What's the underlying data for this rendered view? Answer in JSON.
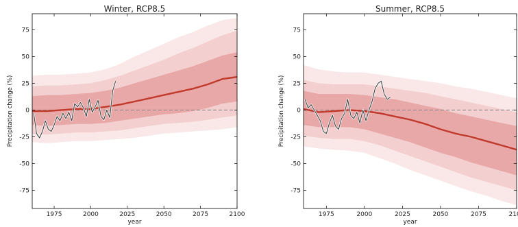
{
  "figure": {
    "background": "#ffffff"
  },
  "chart_data": [
    {
      "type": "area",
      "title": "Winter, RCP8.5",
      "xlabel": "year",
      "ylabel": "Precipitation change (%)",
      "xlim": [
        1960,
        2100
      ],
      "ylim": [
        -92,
        90
      ],
      "xticks": [
        1975,
        2000,
        2025,
        2050,
        2075,
        2100
      ],
      "yticks": [
        -75,
        -50,
        -25,
        0,
        25,
        50,
        75
      ],
      "zero_line": {
        "y": 0,
        "style": "dashed",
        "color": "#8a8a8a"
      },
      "colors": {
        "median": "#c0392b",
        "band_inner": "#e8a8a8",
        "band_middle": "#f4cfcf",
        "band_outer": "#fae8e8",
        "observed": "#404040"
      },
      "x": [
        1960,
        1970,
        1980,
        1990,
        2000,
        2010,
        2020,
        2030,
        2040,
        2050,
        2060,
        2070,
        2080,
        2090,
        2100
      ],
      "series": [
        {
          "role": "median",
          "values": [
            -1,
            -1,
            0,
            1,
            1,
            3,
            5,
            8,
            11,
            14,
            17,
            20,
            24,
            29,
            31
          ]
        },
        {
          "role": "band_inner_upper",
          "values": [
            13,
            14,
            14,
            15,
            16,
            18,
            21,
            25,
            29,
            33,
            37,
            41,
            46,
            51,
            54
          ]
        },
        {
          "role": "band_inner_lower",
          "values": [
            -14,
            -15,
            -14,
            -13,
            -13,
            -12,
            -10,
            -8,
            -6,
            -4,
            -3,
            -1,
            2,
            6,
            8
          ]
        },
        {
          "role": "band_middle_upper",
          "values": [
            22,
            23,
            23,
            24,
            25,
            28,
            32,
            37,
            42,
            47,
            53,
            58,
            64,
            70,
            74
          ]
        },
        {
          "role": "band_middle_lower",
          "values": [
            -22,
            -23,
            -22,
            -21,
            -21,
            -20,
            -19,
            -17,
            -15,
            -13,
            -12,
            -11,
            -9,
            -7,
            -5
          ]
        },
        {
          "role": "band_outer_upper",
          "values": [
            32,
            33,
            33,
            34,
            35,
            38,
            43,
            50,
            56,
            62,
            68,
            73,
            79,
            84,
            86
          ]
        },
        {
          "role": "band_outer_lower",
          "values": [
            -30,
            -31,
            -30,
            -29,
            -29,
            -28,
            -27,
            -26,
            -24,
            -22,
            -21,
            -20,
            -19,
            -18,
            -16
          ]
        }
      ],
      "observed": {
        "x": [
          1961,
          1963,
          1965,
          1967,
          1969,
          1971,
          1973,
          1975,
          1977,
          1979,
          1981,
          1983,
          1985,
          1987,
          1989,
          1991,
          1993,
          1995,
          1997,
          1999,
          2001,
          2003,
          2005,
          2007,
          2009,
          2011,
          2013,
          2015,
          2017
        ],
        "values": [
          -3,
          -22,
          -26,
          -20,
          -10,
          -18,
          -20,
          -14,
          -6,
          -10,
          -3,
          -8,
          -2,
          -10,
          6,
          3,
          7,
          2,
          -6,
          10,
          -2,
          3,
          9,
          -6,
          -9,
          0,
          -7,
          18,
          27
        ]
      }
    },
    {
      "type": "area",
      "title": "Summer, RCP8.5",
      "xlabel": "year",
      "ylabel": "Precipitation change (%)",
      "xlim": [
        1960,
        2100
      ],
      "ylim": [
        -92,
        90
      ],
      "xticks": [
        1975,
        2000,
        2025,
        2050,
        2075,
        2100
      ],
      "yticks": [
        -75,
        -50,
        -25,
        0,
        25,
        50,
        75
      ],
      "zero_line": {
        "y": 0,
        "style": "dashed",
        "color": "#8a8a8a"
      },
      "colors": {
        "median": "#c0392b",
        "band_inner": "#e8a8a8",
        "band_middle": "#f4cfcf",
        "band_outer": "#fae8e8",
        "observed": "#404040"
      },
      "x": [
        1960,
        1970,
        1980,
        1990,
        2000,
        2010,
        2020,
        2030,
        2040,
        2050,
        2060,
        2070,
        2080,
        2090,
        2100
      ],
      "series": [
        {
          "role": "median",
          "values": [
            1,
            -2,
            -1,
            0,
            -1,
            -3,
            -6,
            -9,
            -13,
            -18,
            -22,
            -25,
            -29,
            -33,
            -37
          ]
        },
        {
          "role": "band_inner_upper",
          "values": [
            18,
            15,
            15,
            15,
            14,
            12,
            10,
            7,
            4,
            1,
            -3,
            -6,
            -9,
            -12,
            -15
          ]
        },
        {
          "role": "band_inner_lower",
          "values": [
            -14,
            -16,
            -16,
            -16,
            -18,
            -22,
            -26,
            -30,
            -35,
            -40,
            -44,
            -49,
            -53,
            -57,
            -61
          ]
        },
        {
          "role": "band_middle_upper",
          "values": [
            28,
            25,
            24,
            24,
            24,
            22,
            20,
            18,
            16,
            13,
            10,
            7,
            4,
            1,
            -2
          ]
        },
        {
          "role": "band_middle_lower",
          "values": [
            -24,
            -26,
            -27,
            -27,
            -29,
            -33,
            -38,
            -43,
            -48,
            -53,
            -58,
            -63,
            -67,
            -71,
            -75
          ]
        },
        {
          "role": "band_outer_upper",
          "values": [
            42,
            38,
            36,
            35,
            35,
            33,
            31,
            29,
            27,
            25,
            22,
            20,
            17,
            14,
            11
          ]
        },
        {
          "role": "band_outer_lower",
          "values": [
            -34,
            -36,
            -37,
            -38,
            -40,
            -45,
            -50,
            -56,
            -61,
            -66,
            -71,
            -76,
            -80,
            -85,
            -89
          ]
        }
      ],
      "observed": {
        "x": [
          1961,
          1963,
          1965,
          1967,
          1969,
          1971,
          1973,
          1975,
          1977,
          1979,
          1981,
          1983,
          1985,
          1987,
          1989,
          1991,
          1993,
          1995,
          1997,
          1999,
          2001,
          2003,
          2005,
          2007,
          2009,
          2011,
          2013,
          2015,
          2017
        ],
        "values": [
          10,
          2,
          5,
          0,
          -5,
          -10,
          -20,
          -22,
          -12,
          -5,
          -15,
          -18,
          -8,
          -3,
          10,
          -5,
          -8,
          -2,
          -12,
          0,
          -10,
          0,
          8,
          20,
          25,
          27,
          15,
          10,
          12
        ]
      }
    }
  ]
}
